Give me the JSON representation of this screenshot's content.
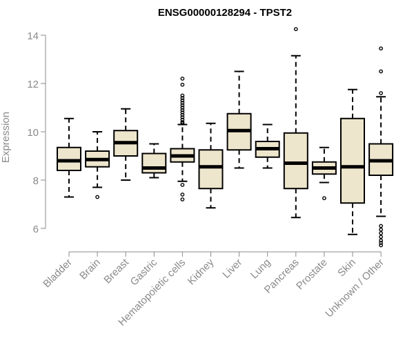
{
  "chart_data": {
    "type": "boxplot",
    "title": "ENSG00000128294 - TPST2",
    "ylabel": "Expression",
    "ylim": [
      5,
      14.4
    ],
    "yticks": [
      6,
      8,
      10,
      12,
      14
    ],
    "box_fill": "#ede5cc",
    "categories": [
      "Bladder",
      "Brain",
      "Breast",
      "Gastric",
      "Hematopoietic cells",
      "Kidney",
      "Liver",
      "Lung",
      "Pancreas",
      "Prostate",
      "Skin",
      "Unknown / Other"
    ],
    "boxes": [
      {
        "name": "Bladder",
        "min": 7.3,
        "q1": 8.4,
        "median": 8.8,
        "q3": 9.35,
        "max": 10.55,
        "outliers": []
      },
      {
        "name": "Brain",
        "min": 7.7,
        "q1": 8.55,
        "median": 8.85,
        "q3": 9.2,
        "max": 10.0,
        "outliers": [
          7.3
        ]
      },
      {
        "name": "Breast",
        "min": 8.0,
        "q1": 9.0,
        "median": 9.55,
        "q3": 10.05,
        "max": 10.95,
        "outliers": []
      },
      {
        "name": "Gastric",
        "min": 8.1,
        "q1": 8.3,
        "median": 8.5,
        "q3": 9.1,
        "max": 9.5,
        "outliers": []
      },
      {
        "name": "Hematopoietic cells",
        "min": 7.95,
        "q1": 8.75,
        "median": 9.0,
        "q3": 9.3,
        "max": 10.3,
        "outliers": [
          12.2,
          11.95,
          11.5,
          11.4,
          11.3,
          11.2,
          11.1,
          11.0,
          10.9,
          10.8,
          10.7,
          10.6,
          10.5,
          10.4,
          10.35,
          7.8,
          7.4,
          7.2
        ]
      },
      {
        "name": "Kidney",
        "min": 6.85,
        "q1": 7.65,
        "median": 8.55,
        "q3": 9.25,
        "max": 10.35,
        "outliers": []
      },
      {
        "name": "Liver",
        "min": 8.5,
        "q1": 9.25,
        "median": 10.05,
        "q3": 10.75,
        "max": 12.5,
        "outliers": []
      },
      {
        "name": "Lung",
        "min": 8.5,
        "q1": 8.95,
        "median": 9.3,
        "q3": 9.6,
        "max": 10.3,
        "outliers": []
      },
      {
        "name": "Pancreas",
        "min": 6.45,
        "q1": 7.65,
        "median": 8.7,
        "q3": 9.95,
        "max": 13.15,
        "outliers": [
          14.25
        ]
      },
      {
        "name": "Prostate",
        "min": 7.9,
        "q1": 8.25,
        "median": 8.5,
        "q3": 8.75,
        "max": 9.35,
        "outliers": [
          7.25
        ]
      },
      {
        "name": "Skin",
        "min": 5.75,
        "q1": 7.05,
        "median": 8.55,
        "q3": 10.55,
        "max": 11.75,
        "outliers": []
      },
      {
        "name": "Unknown / Other",
        "min": 6.5,
        "q1": 8.2,
        "median": 8.8,
        "q3": 9.5,
        "max": 11.45,
        "outliers": [
          13.45,
          12.5,
          11.6,
          6.1,
          5.95,
          5.8,
          5.65,
          5.5,
          5.4,
          5.3
        ]
      }
    ]
  }
}
